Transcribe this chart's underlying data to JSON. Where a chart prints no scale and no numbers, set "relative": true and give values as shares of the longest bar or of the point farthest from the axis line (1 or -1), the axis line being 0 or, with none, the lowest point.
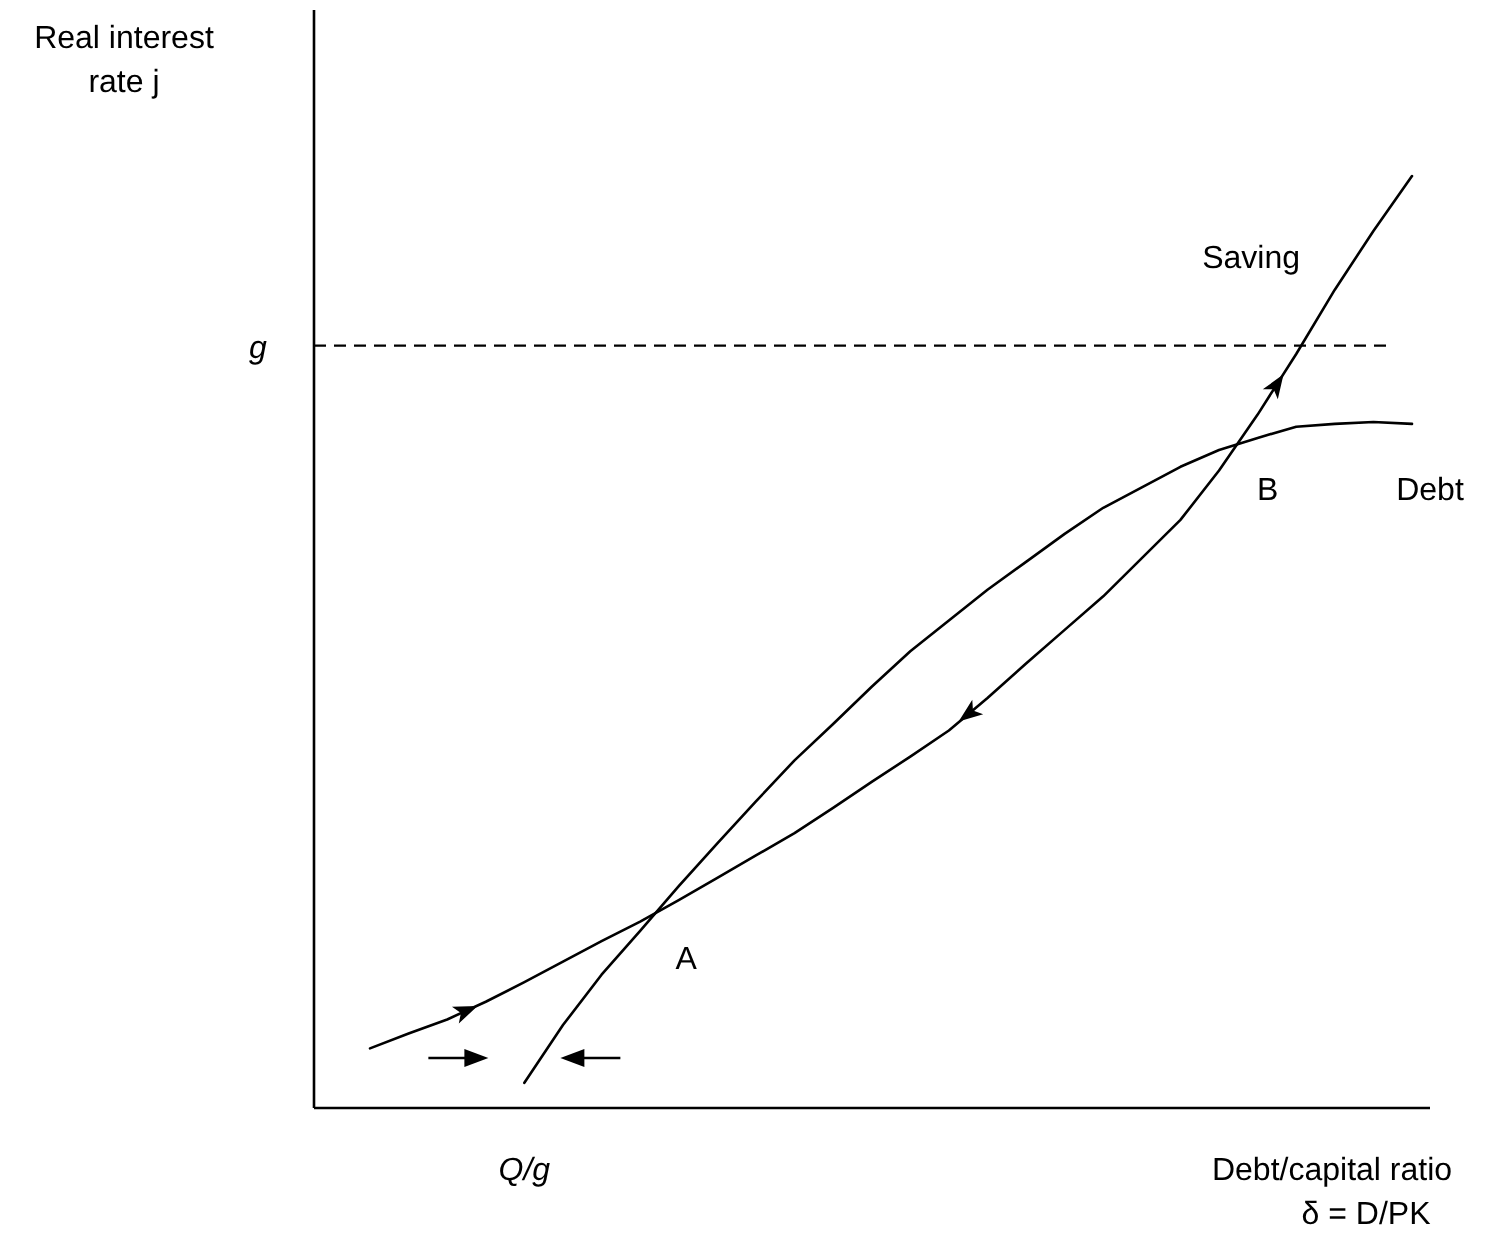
{
  "chart_data": {
    "type": "line",
    "relative": true,
    "xlabel": "Debt/capital ratio δ = D/PK",
    "ylabel": "Real interest rate j",
    "categories": [
      null,
      null,
      null,
      null,
      null,
      null,
      null,
      null,
      null,
      null,
      null,
      null,
      null,
      null,
      null,
      null,
      null,
      null,
      null,
      null,
      null,
      null,
      null,
      null,
      null,
      null,
      null,
      null
    ],
    "series": [
      {
        "name": "Debt",
        "color": "#000000",
        "values": [
          null,
          null,
          null,
          null,
          0.027,
          0.089,
          0.143,
          0.19,
          0.238,
          0.284,
          0.329,
          0.373,
          0.412,
          0.452,
          0.49,
          0.523,
          0.556,
          0.586,
          0.616,
          0.644,
          0.666,
          0.688,
          0.706,
          0.719,
          0.731,
          0.734,
          0.736,
          0.734
        ]
      },
      {
        "name": "Saving",
        "color": "#000000",
        "values": [
          0.064,
          0.08,
          0.095,
          0.114,
          0.135,
          0.157,
          0.179,
          0.2,
          0.223,
          0.247,
          0.271,
          0.295,
          0.322,
          0.35,
          0.377,
          0.405,
          0.44,
          0.477,
          0.513,
          0.549,
          0.59,
          0.631,
          0.684,
          0.744,
          0.809,
          0.878,
          0.941,
          1
        ]
      }
    ],
    "ref_lines": [
      {
        "axis": "y",
        "value": 0.818,
        "label": "g",
        "line_style": "dashed",
        "color": "#000000"
      }
    ],
    "annotations": [
      "A",
      "B",
      "Q/g"
    ]
  }
}
